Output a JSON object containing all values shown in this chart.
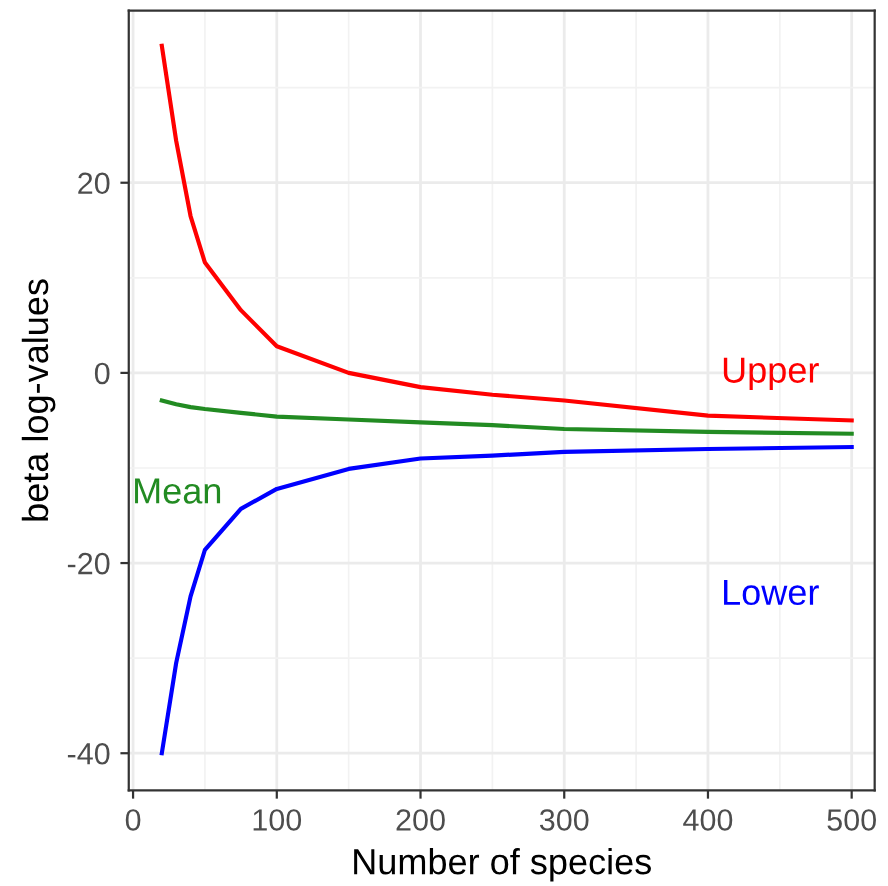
{
  "chart_data": {
    "type": "line",
    "xlabel": "Number of species",
    "ylabel": "beta log-values",
    "xlim": [
      -3,
      516
    ],
    "ylim": [
      -43.9,
      38.1
    ],
    "xticks": [
      0,
      100,
      200,
      300,
      400,
      500
    ],
    "yticks": [
      -40,
      -20,
      0,
      20
    ],
    "grid": true,
    "legend": false,
    "line_style": "solid",
    "marker": "none",
    "x": [
      20,
      30,
      40,
      50,
      75,
      100,
      150,
      200,
      250,
      300,
      400,
      500
    ],
    "series": [
      {
        "name": "Upper",
        "color": "#ff0000",
        "values": [
          34.4,
          24.4,
          16.5,
          11.6,
          6.6,
          2.8,
          0.0,
          -1.5,
          -2.3,
          -2.9,
          -4.5,
          -5.0
        ]
      },
      {
        "name": "Mean",
        "color": "#228b22",
        "values": [
          -2.9,
          -3.3,
          -3.6,
          -3.8,
          -4.2,
          -4.6,
          -4.9,
          -5.2,
          -5.5,
          -5.9,
          -6.2,
          -6.4
        ]
      },
      {
        "name": "Lower",
        "color": "#0000ff",
        "values": [
          -40,
          -30.5,
          -23.5,
          -18.6,
          -14.3,
          -12.2,
          -10.1,
          -9.0,
          -8.7,
          -8.3,
          -8.0,
          -7.8
        ]
      }
    ]
  }
}
